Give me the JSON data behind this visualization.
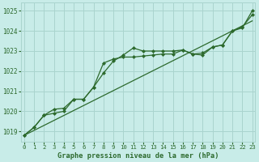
{
  "xlabel": "Graphe pression niveau de la mer (hPa)",
  "bg_color": "#c8ece8",
  "grid_color": "#aad4ce",
  "line_color": "#2d6a2d",
  "x_ticks": [
    0,
    1,
    2,
    3,
    4,
    5,
    6,
    7,
    8,
    9,
    10,
    11,
    12,
    13,
    14,
    15,
    16,
    17,
    18,
    19,
    20,
    21,
    22,
    23
  ],
  "ylim": [
    1018.5,
    1025.4
  ],
  "xlim": [
    -0.3,
    23.3
  ],
  "yticks": [
    1019,
    1020,
    1021,
    1022,
    1023,
    1024,
    1025
  ],
  "series1_x": [
    0,
    1,
    2,
    3,
    4,
    5,
    6,
    7,
    8,
    9,
    10,
    11,
    12,
    13,
    14,
    15,
    16,
    17,
    18,
    19,
    20,
    21,
    22,
    23
  ],
  "series1_y": [
    1018.8,
    1019.2,
    1019.8,
    1019.9,
    1020.0,
    1020.6,
    1020.6,
    1021.2,
    1021.9,
    1022.5,
    1022.8,
    1023.15,
    1023.0,
    1023.0,
    1023.0,
    1023.0,
    1023.05,
    1022.85,
    1022.9,
    1023.2,
    1023.3,
    1024.0,
    1024.2,
    1024.8
  ],
  "series2_x": [
    0,
    1,
    2,
    3,
    4,
    5,
    6,
    7,
    8,
    9,
    10,
    11,
    12,
    13,
    14,
    15,
    16,
    17,
    18,
    19,
    20,
    21,
    22,
    23
  ],
  "series2_y": [
    1018.8,
    1019.2,
    1019.8,
    1020.1,
    1020.15,
    1020.6,
    1020.6,
    1021.2,
    1022.4,
    1022.6,
    1022.7,
    1022.7,
    1022.75,
    1022.8,
    1022.85,
    1022.85,
    1023.05,
    1022.85,
    1022.8,
    1023.2,
    1023.3,
    1024.0,
    1024.15,
    1025.0
  ],
  "trend_x": [
    0,
    23
  ],
  "trend_y": [
    1018.8,
    1024.5
  ]
}
